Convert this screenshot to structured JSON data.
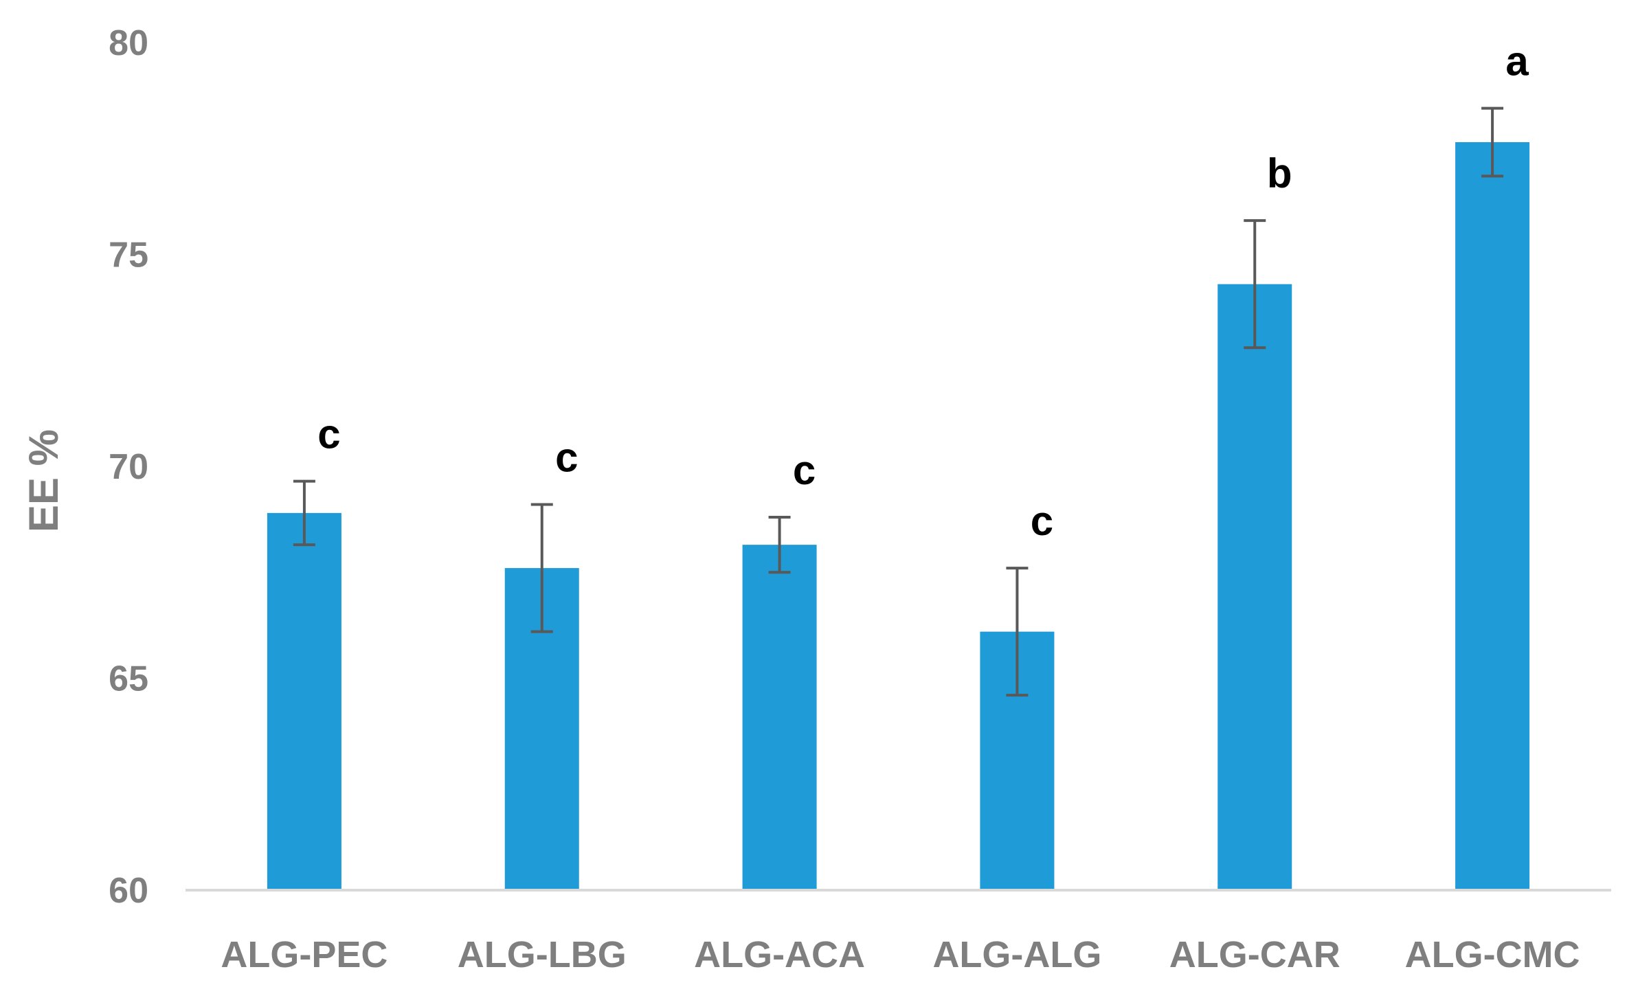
{
  "chart_data": {
    "type": "bar",
    "title": "",
    "xlabel": "",
    "ylabel": "EE %",
    "ylim": [
      60,
      80
    ],
    "yticks": [
      60,
      65,
      70,
      75,
      80
    ],
    "grid": false,
    "categories": [
      "ALG-PEC",
      "ALG-LBG",
      "ALG-ACA",
      "ALG-ALG",
      "ALG-CAR",
      "ALG-CMC"
    ],
    "series": [
      {
        "name": "EE %",
        "values": [
          68.9,
          67.6,
          68.15,
          66.1,
          74.3,
          77.65
        ],
        "errors": [
          0.75,
          1.5,
          0.65,
          1.5,
          1.5,
          0.8
        ],
        "significance": [
          "c",
          "c",
          "c",
          "c",
          "b",
          "a"
        ]
      }
    ],
    "colors": {
      "bar": "#1f9bd7",
      "error_bar": "#595959",
      "axis_line": "#d9d9d9",
      "tick_text": "#7f7f7f",
      "sig_text": "#000000"
    }
  }
}
